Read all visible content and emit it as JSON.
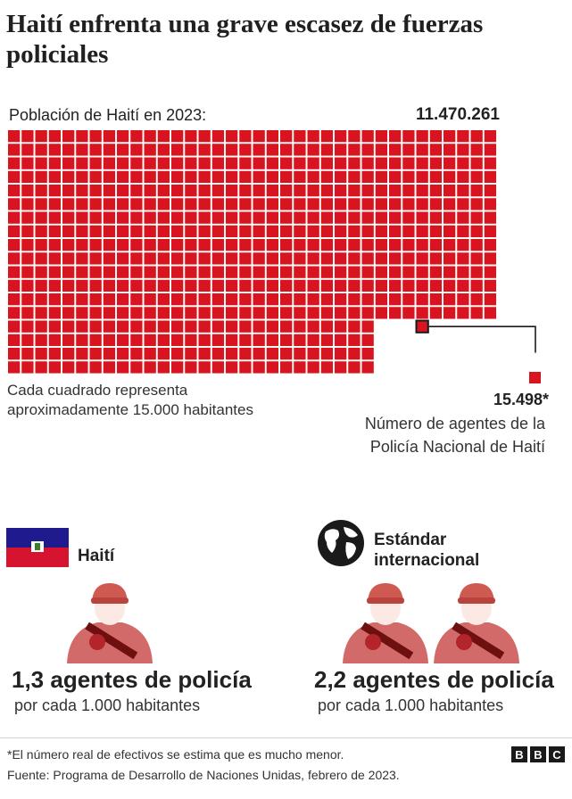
{
  "title": "Haití enfrenta una grave escasez de fuerzas policiales",
  "colors": {
    "accent_red": "#d7141f",
    "dark_text": "#222222"
  },
  "chart_data": {
    "type": "waffle",
    "population_label": "Población de Haití en 2023:",
    "population_value": "11.470.261",
    "square_note": "Cada cuadrado representa aproximadamente 15.000 habitantes",
    "police_value": "15.498*",
    "police_label": "Número de agentes de la Policía Nacional de Haití"
  },
  "comparison": {
    "haiti": {
      "name": "Haití",
      "icon": "haiti-flag",
      "ratio_text": "1,3 agentes de policía",
      "per_text": "por cada 1.000 habitantes"
    },
    "standard": {
      "name_line1": "Estándar",
      "name_line2": "internacional",
      "icon": "globe-icon",
      "ratio_text": "2,2 agentes de policía",
      "per_text": "por cada 1.000 habitantes"
    }
  },
  "footer": {
    "footnote": "*El número real de efectivos se estima que es mucho menor.",
    "source": "Fuente: Programa de Desarrollo de Naciones Unidas, febrero de 2023.",
    "logo_letters": [
      "B",
      "B",
      "C"
    ]
  }
}
